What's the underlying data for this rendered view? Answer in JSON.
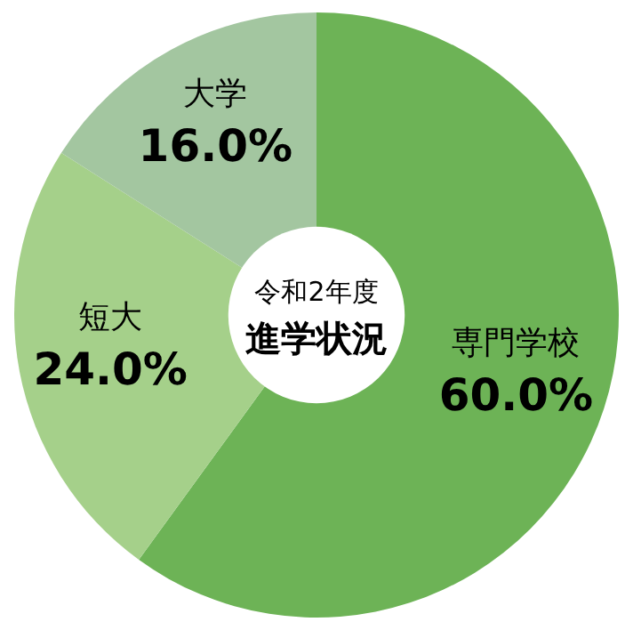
{
  "chart_data": {
    "type": "donut",
    "title": "令和2年度",
    "subtitle": "進学状況",
    "categories": [
      "専門学校",
      "短大",
      "大学"
    ],
    "values": [
      60.0,
      24.0,
      16.0
    ],
    "value_labels": [
      "60.0%",
      "24.0%",
      "16.0%"
    ],
    "colors": [
      "#6db356",
      "#a5d08a",
      "#a3c6a0"
    ]
  }
}
